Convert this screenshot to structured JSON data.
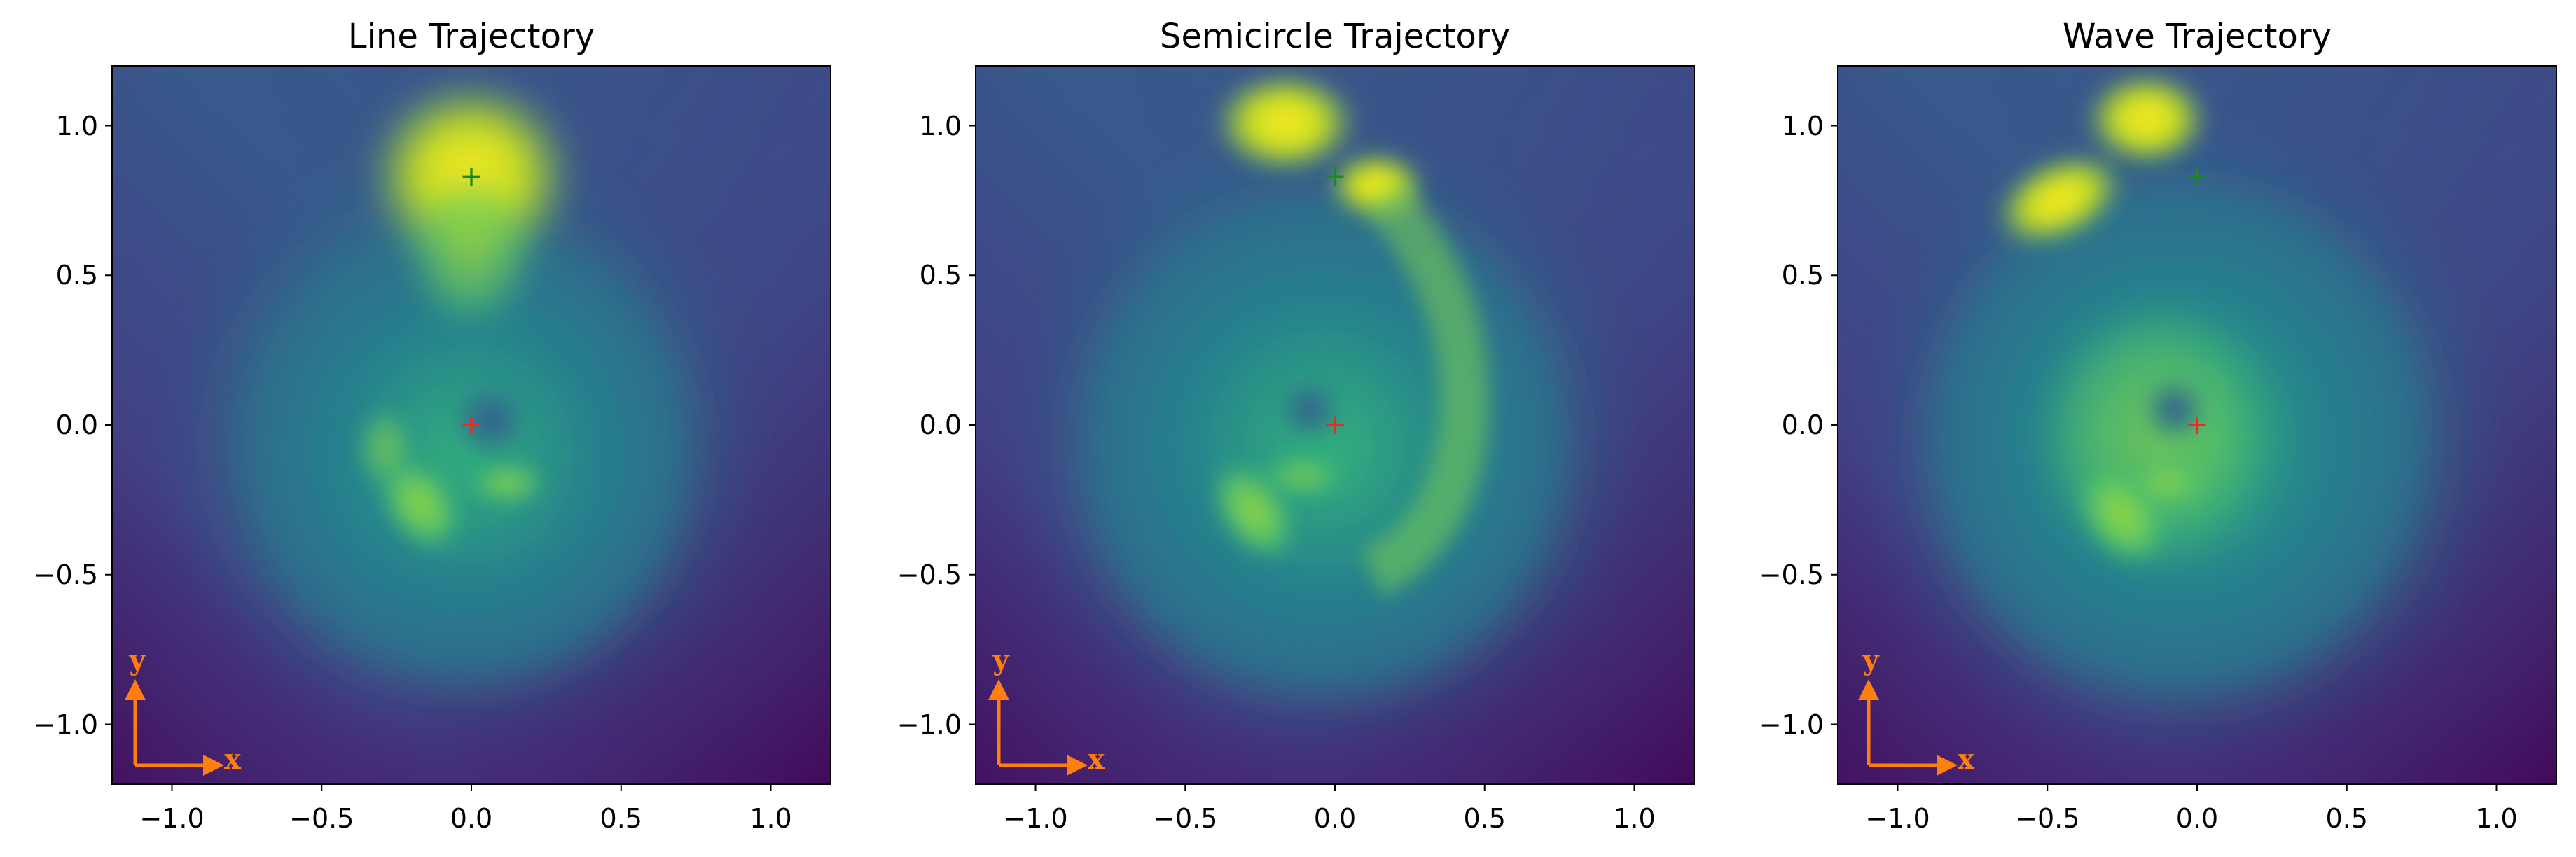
{
  "chart_data": [
    {
      "type": "heatmap",
      "title": "Line Trajectory",
      "xlim": [
        -1.2,
        1.2
      ],
      "ylim": [
        -1.2,
        1.2
      ],
      "xticks": [
        -1.0,
        -0.5,
        0.0,
        0.5,
        1.0
      ],
      "yticks": [
        -1.0,
        -0.5,
        0.0,
        0.5,
        1.0
      ],
      "xtick_labels": [
        "−1.0",
        "−0.5",
        "0.0",
        "0.5",
        "1.0"
      ],
      "ytick_labels": [
        "−1.0",
        "−0.5",
        "0.0",
        "0.5",
        "1.0"
      ],
      "colormap": "viridis",
      "markers": [
        {
          "x": 0.0,
          "y": 0.83,
          "symbol": "+",
          "color": "#1a8a1a"
        },
        {
          "x": 0.0,
          "y": 0.0,
          "symbol": "+",
          "color": "#ff2020"
        }
      ],
      "indicator": {
        "x_label": "x",
        "y_label": "y",
        "color": "#ff7f0e"
      }
    },
    {
      "type": "heatmap",
      "title": "Semicircle Trajectory",
      "xlim": [
        -1.2,
        1.2
      ],
      "ylim": [
        -1.2,
        1.2
      ],
      "xticks": [
        -1.0,
        -0.5,
        0.0,
        0.5,
        1.0
      ],
      "yticks": [
        -1.0,
        -0.5,
        0.0,
        0.5,
        1.0
      ],
      "xtick_labels": [
        "−1.0",
        "−0.5",
        "0.0",
        "0.5",
        "1.0"
      ],
      "ytick_labels": [
        "−1.0",
        "−0.5",
        "0.0",
        "0.5",
        "1.0"
      ],
      "colormap": "viridis",
      "markers": [
        {
          "x": 0.0,
          "y": 0.83,
          "symbol": "+",
          "color": "#1a8a1a"
        },
        {
          "x": 0.0,
          "y": 0.0,
          "symbol": "+",
          "color": "#ff2020"
        }
      ],
      "indicator": {
        "x_label": "x",
        "y_label": "y",
        "color": "#ff7f0e"
      }
    },
    {
      "type": "heatmap",
      "title": "Wave Trajectory",
      "xlim": [
        -1.2,
        1.2
      ],
      "ylim": [
        -1.2,
        1.2
      ],
      "xticks": [
        -1.0,
        -0.5,
        0.0,
        0.5,
        1.0
      ],
      "yticks": [
        -1.0,
        -0.5,
        0.0,
        0.5,
        1.0
      ],
      "xtick_labels": [
        "−1.0",
        "−0.5",
        "0.0",
        "0.5",
        "1.0"
      ],
      "ytick_labels": [
        "−1.0",
        "−0.5",
        "0.0",
        "0.5",
        "1.0"
      ],
      "colormap": "viridis",
      "markers": [
        {
          "x": 0.0,
          "y": 0.83,
          "symbol": "+",
          "color": "#1a8a1a"
        },
        {
          "x": 0.0,
          "y": 0.0,
          "symbol": "+",
          "color": "#ff2020"
        }
      ],
      "indicator": {
        "x_label": "x",
        "y_label": "y",
        "color": "#ff7f0e"
      }
    }
  ]
}
